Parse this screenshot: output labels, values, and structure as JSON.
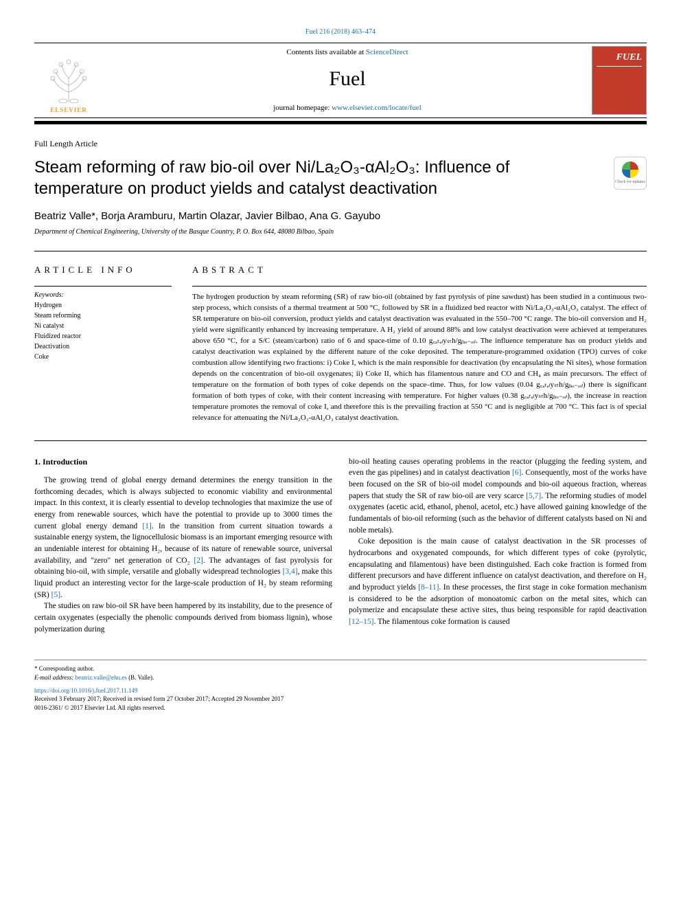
{
  "top_citation": "Fuel 216 (2018) 463–474",
  "header": {
    "contents_prefix": "Contents lists available at ",
    "contents_link_text": "ScienceDirect",
    "journal_name": "Fuel",
    "homepage_prefix": "journal homepage: ",
    "homepage_link_text": "www.elsevier.com/locate/fuel",
    "publisher_label": "ELSEVIER",
    "cover_label": "FUEL"
  },
  "article": {
    "type": "Full Length Article",
    "title_html": "Steam reforming of raw bio-oil over Ni/La₂O₃-αAl₂O₃: Influence of temperature on product yields and catalyst deactivation",
    "authors": "Beatriz Valle*, Borja Aramburu, Martin Olazar, Javier Bilbao, Ana G. Gayubo",
    "affiliation": "Department of Chemical Engineering, University of the Basque Country, P. O. Box 644, 48080 Bilbao, Spain",
    "crossmark_label": "Check for updates"
  },
  "info": {
    "label": "ARTICLE INFO",
    "keywords_label": "Keywords:",
    "keywords": [
      "Hydrogen",
      "Steam reforming",
      "Ni catalyst",
      "Fluidized reactor",
      "Deactivation",
      "Coke"
    ]
  },
  "abstract": {
    "label": "ABSTRACT",
    "text": "The hydrogen production by steam reforming (SR) of raw bio-oil (obtained by fast pyrolysis of pine sawdust) has been studied in a continuous two-step process, which consists of a thermal treatment at 500 °C, followed by SR in a fluidized bed reactor with Ni/La₂O₃-αAl₂O₃ catalyst. The effect of SR temperature on bio-oil conversion, product yields and catalyst deactivation was evaluated in the 550–700 °C range. The bio-oil conversion and H₂ yield were significantly enhanced by increasing temperature. A H₂ yield of around 88% and low catalyst deactivation were achieved at temperatures above 650 °C, for a S/C (steam/carbon) ratio of 6 and space-time of 0.10 g꜀ₐₜₐₗyₛₜh/gᵦᵢₒ₋ₒᵢₗ. The influence temperature has on product yields and catalyst deactivation was explained by the different nature of the coke deposited. The temperature-programmed oxidation (TPO) curves of coke combustion allow identifying two fractions: i) Coke I, which is the main responsible for deactivation (by encapsulating the Ni sites), whose formation depends on the concentration of bio-oil oxygenates; ii) Coke II, which has filamentous nature and CO and CH₄ as main precursors. The effect of temperature on the formation of both types of coke depends on the space–time. Thus, for low values (0.04 g꜀ₐₜₐₗyₛₜh/gᵦᵢₒ₋ₒᵢₗ) there is significant formation of both types of coke, with their content increasing with temperature. For higher values (0.38 g꜀ₐₜₐₗyₛₜh/gᵦᵢₒ₋ₒᵢₗ), the increase in reaction temperature promotes the removal of coke I, and therefore this is the prevailing fraction at 550 °C and is negligible at 700 °C. This fact is of special relevance for attenuating the Ni/La₂O₃-αAl₂O₃ catalyst deactivation."
  },
  "body": {
    "intro_heading": "1. Introduction",
    "p1": "The growing trend of global energy demand determines the energy transition in the forthcoming decades, which is always subjected to economic viability and environmental impact. In this context, it is clearly essential to develop technologies that maximize the use of energy from renewable sources, which have the potential to provide up to 3000 times the current global energy demand [1]. In the transition from current situation towards a sustainable energy system, the lignocellulosic biomass is an important emerging resource with an undeniable interest for obtaining H₂, because of its nature of renewable source, universal availability, and \"zero\" net generation of CO₂ [2]. The advantages of fast pyrolysis for obtaining bio-oil, with simple, versatile and globally widespread technologies [3,4], make this liquid product an interesting vector for the large-scale production of H₂ by steam reforming (SR) [5].",
    "p2": "The studies on raw bio-oil SR have been hampered by its instability, due to the presence of certain oxygenates (especially the phenolic compounds derived from biomass lignin), whose polymerization during",
    "p3": "bio-oil heating causes operating problems in the reactor (plugging the feeding system, and even the gas pipelines) and in catalyst deactivation [6]. Consequently, most of the works have been focused on the SR of bio-oil model compounds and bio-oil aqueous fraction, whereas papers that study the SR of raw bio-oil are very scarce [5,7]. The reforming studies of model oxygenates (acetic acid, ethanol, phenol, acetol, etc.) have allowed gaining knowledge of the fundamentals of bio-oil reforming (such as the behavior of different catalysts based on Ni and noble metals).",
    "p4": "Coke deposition is the main cause of catalyst deactivation in the SR processes of hydrocarbons and oxygenated compounds, for which different types of coke (pyrolytic, encapsulating and filamentous) have been distinguished. Each coke fraction is formed from different precursors and have different influence on catalyst deactivation, and therefore on H₂ and byproduct yields [8–11]. In these processes, the first stage in coke formation mechanism is considered to be the adsorption of monoatomic carbon on the metal sites, which can polymerize and encapsulate these active sites, thus being responsible for rapid deactivation [12–15]. The filamentous coke formation is caused"
  },
  "footer": {
    "corr_author": "* Corresponding author.",
    "email_label": "E-mail address: ",
    "email": "beatriz.valle@ehu.es",
    "email_suffix": " (B. Valle).",
    "doi": "https://doi.org/10.1016/j.fuel.2017.11.149",
    "received": "Received 3 February 2017; Received in revised form 27 October 2017; Accepted 29 November 2017",
    "copyright": "0016-2361/ © 2017 Elsevier Ltd. All rights reserved."
  },
  "colors": {
    "link": "#1a6bb5",
    "elsevier_orange": "#f7941e",
    "cover_red": "#c23b2a"
  }
}
